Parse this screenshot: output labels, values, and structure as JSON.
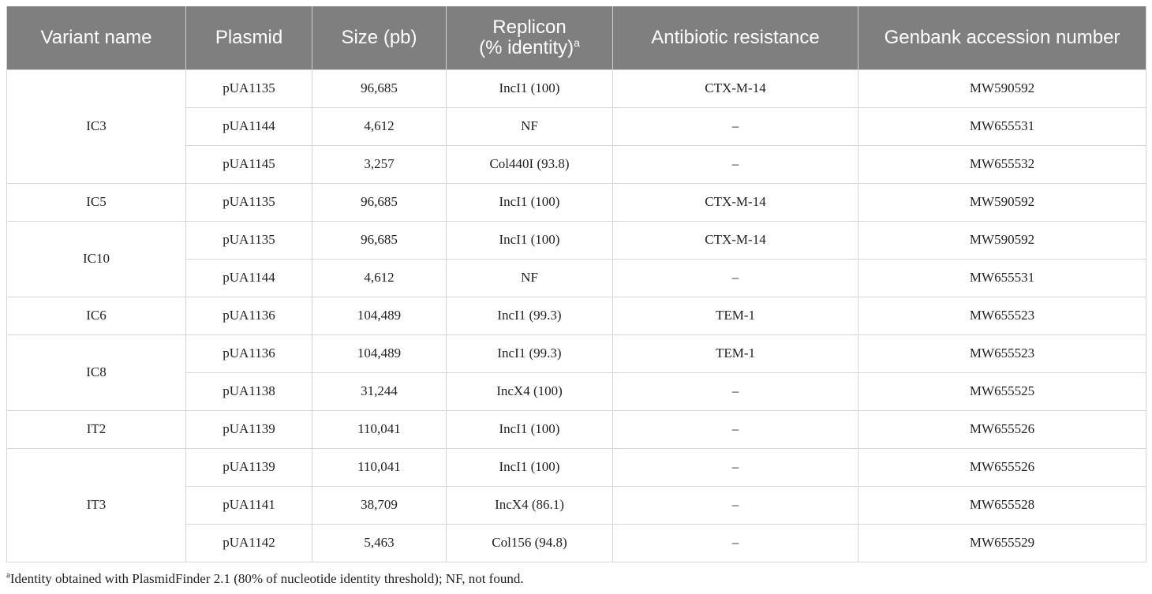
{
  "table": {
    "headers": {
      "variant": "Variant name",
      "plasmid": "Plasmid",
      "size": "Size (pb)",
      "replicon_line1": "Replicon",
      "replicon_line2": "(% identity)",
      "replicon_sup": "a",
      "resistance": "Antibiotic resistance",
      "genbank": "Genbank accession number"
    },
    "groups": [
      {
        "variant": "IC3",
        "rows": [
          {
            "plasmid": "pUA1135",
            "size": "96,685",
            "replicon": "IncI1 (100)",
            "resistance": "CTX-M-14",
            "genbank": "MW590592"
          },
          {
            "plasmid": "pUA1144",
            "size": "4,612",
            "replicon": "NF",
            "resistance": "–",
            "genbank": "MW655531"
          },
          {
            "plasmid": "pUA1145",
            "size": "3,257",
            "replicon": "Col440I (93.8)",
            "resistance": "–",
            "genbank": "MW655532"
          }
        ]
      },
      {
        "variant": "IC5",
        "rows": [
          {
            "plasmid": "pUA1135",
            "size": "96,685",
            "replicon": "IncI1 (100)",
            "resistance": "CTX-M-14",
            "genbank": "MW590592"
          }
        ]
      },
      {
        "variant": "IC10",
        "rows": [
          {
            "plasmid": "pUA1135",
            "size": "96,685",
            "replicon": "IncI1 (100)",
            "resistance": "CTX-M-14",
            "genbank": "MW590592"
          },
          {
            "plasmid": "pUA1144",
            "size": "4,612",
            "replicon": "NF",
            "resistance": "–",
            "genbank": "MW655531"
          }
        ]
      },
      {
        "variant": "IC6",
        "rows": [
          {
            "plasmid": "pUA1136",
            "size": "104,489",
            "replicon": "IncI1 (99.3)",
            "resistance": "TEM-1",
            "genbank": "MW655523"
          }
        ]
      },
      {
        "variant": "IC8",
        "rows": [
          {
            "plasmid": "pUA1136",
            "size": "104,489",
            "replicon": "IncI1 (99.3)",
            "resistance": "TEM-1",
            "genbank": "MW655523"
          },
          {
            "plasmid": "pUA1138",
            "size": "31,244",
            "replicon": "IncX4 (100)",
            "resistance": "–",
            "genbank": "MW655525"
          }
        ]
      },
      {
        "variant": "IT2",
        "rows": [
          {
            "plasmid": "pUA1139",
            "size": "110,041",
            "replicon": "IncI1 (100)",
            "resistance": "–",
            "genbank": "MW655526"
          }
        ]
      },
      {
        "variant": "IT3",
        "rows": [
          {
            "plasmid": "pUA1139",
            "size": "110,041",
            "replicon": "IncI1 (100)",
            "resistance": "–",
            "genbank": "MW655526"
          },
          {
            "plasmid": "pUA1141",
            "size": "38,709",
            "replicon": "IncX4 (86.1)",
            "resistance": "–",
            "genbank": "MW655528"
          },
          {
            "plasmid": "pUA1142",
            "size": "5,463",
            "replicon": "Col156 (94.8)",
            "resistance": "–",
            "genbank": "MW655529"
          }
        ]
      }
    ]
  },
  "footnote": {
    "marker": "a",
    "text": "Identity obtained with PlasmidFinder 2.1 (80% of nucleotide identity threshold); NF, not found."
  },
  "colors": {
    "header_bg": "#7f7f7f",
    "header_text": "#ffffff",
    "grid_line": "#d4d4d4",
    "body_text": "#222222"
  }
}
